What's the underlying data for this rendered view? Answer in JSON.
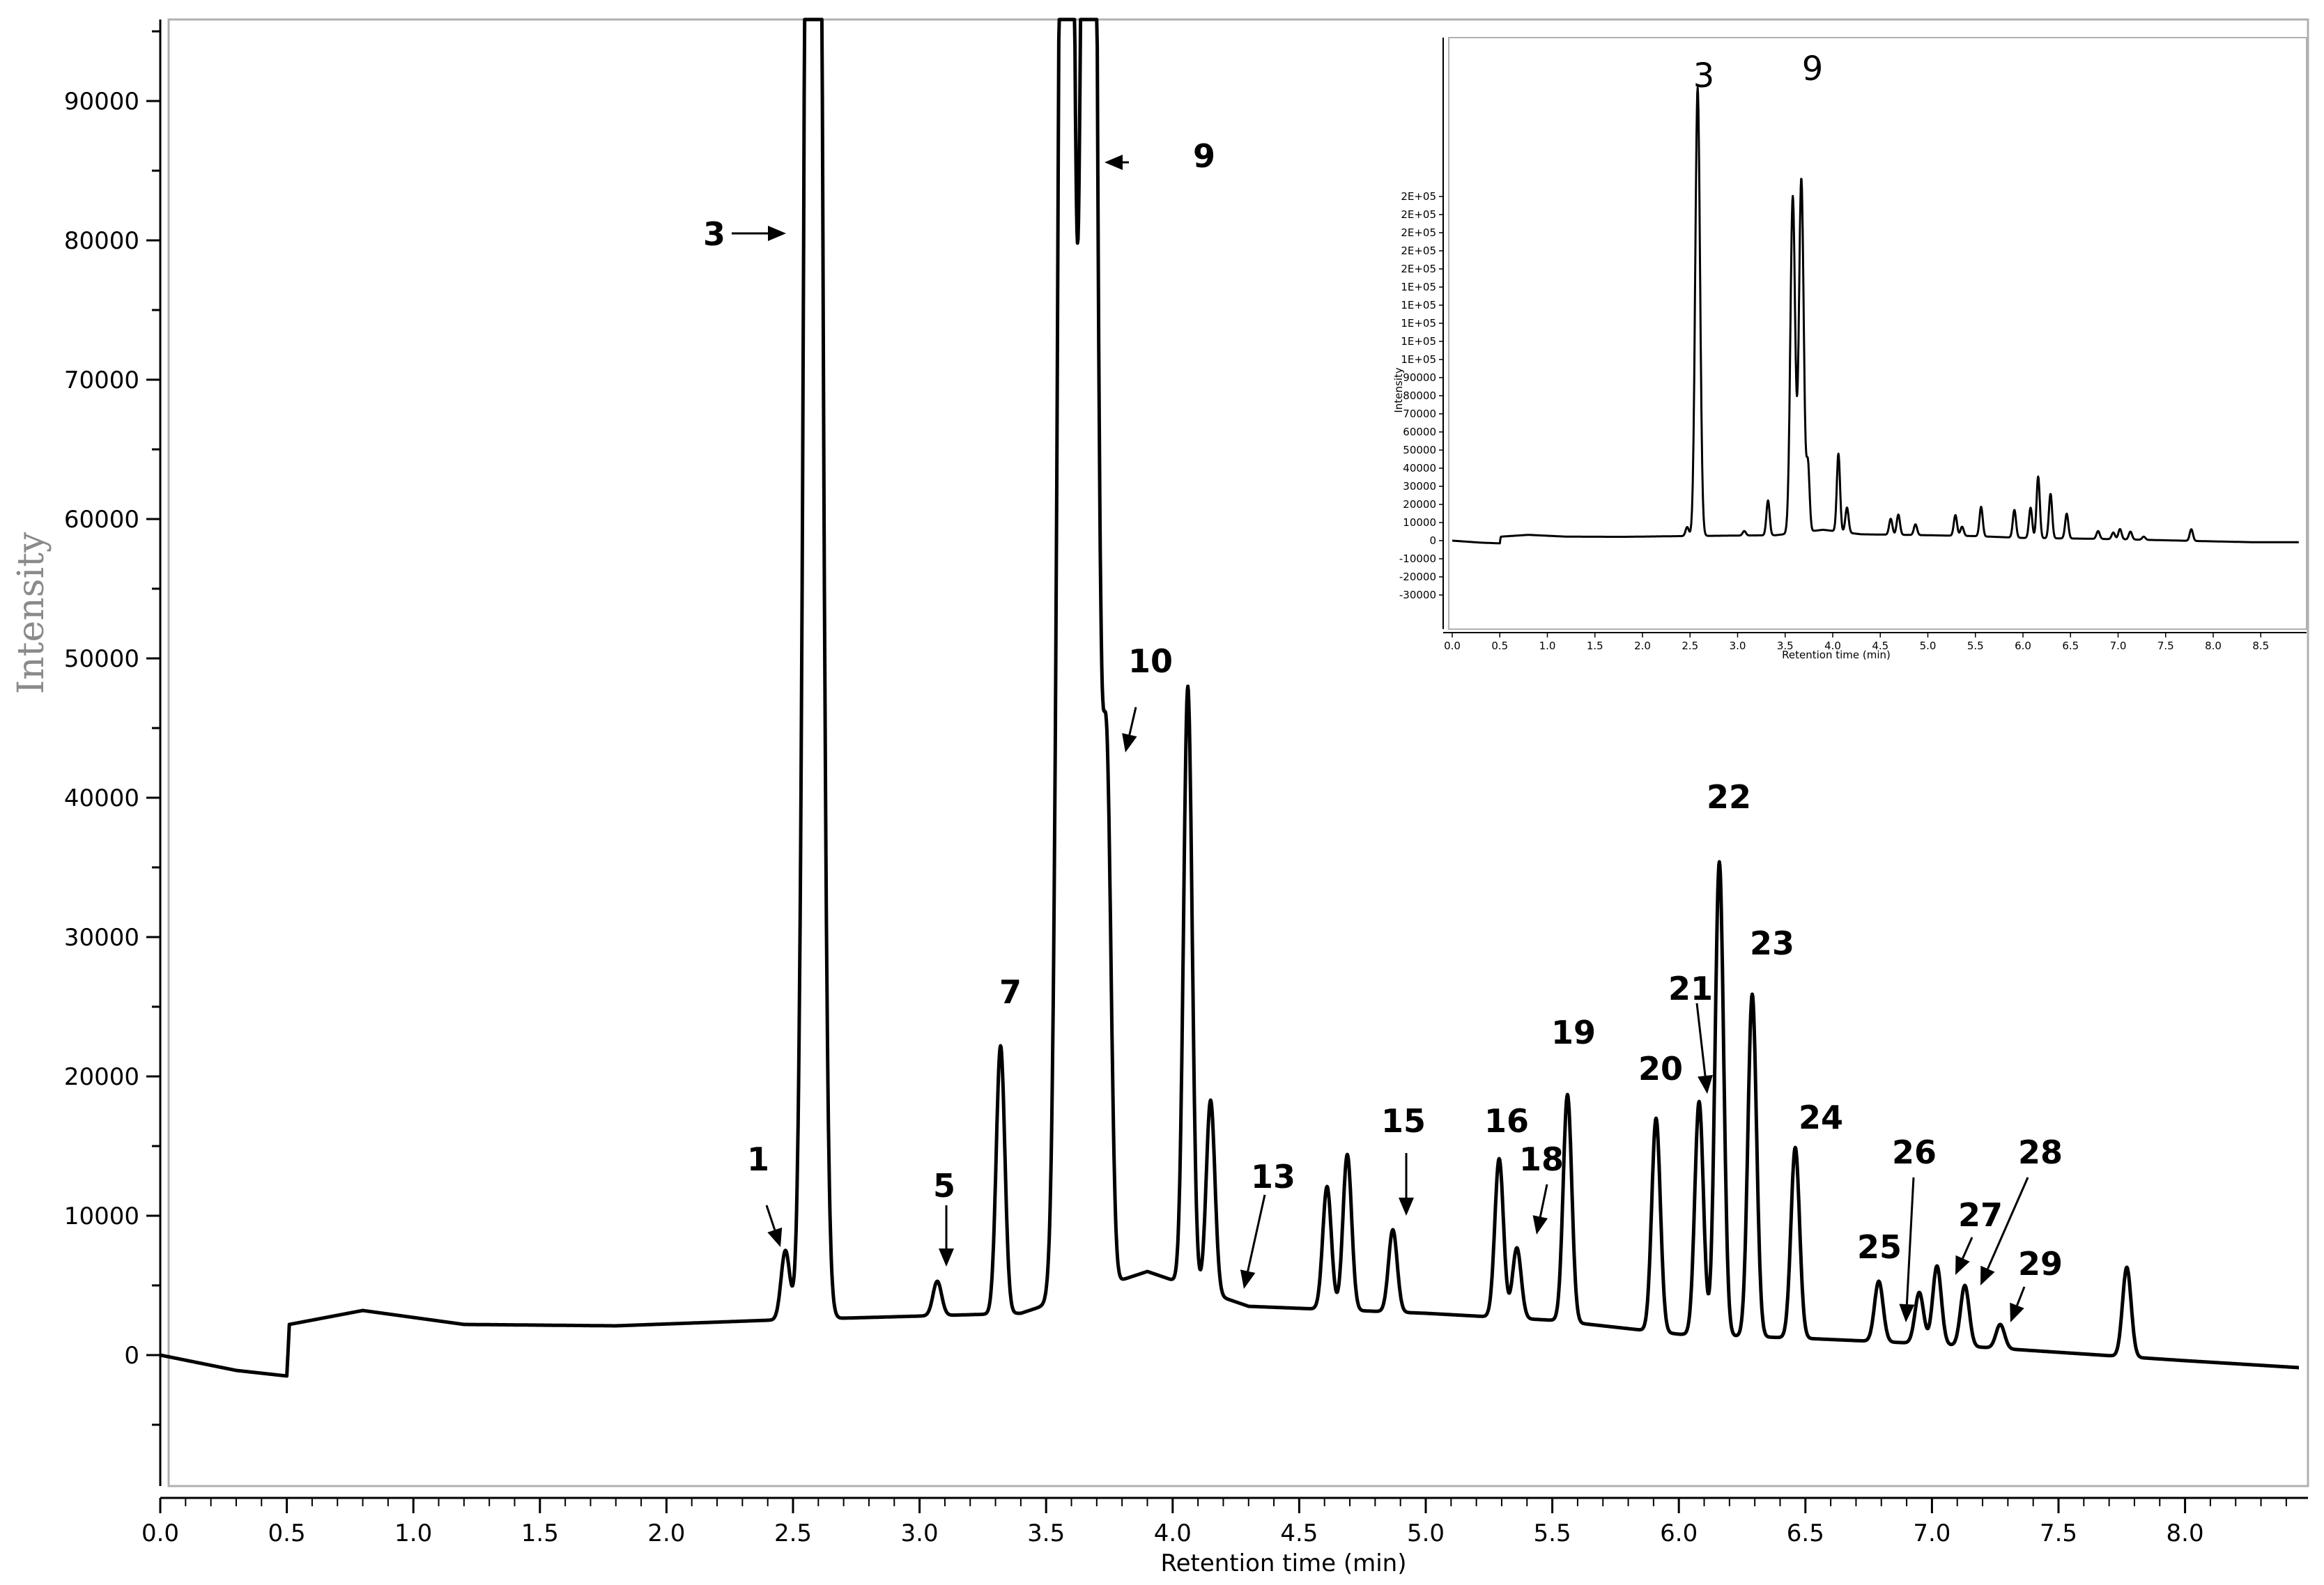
{
  "chart_data": {
    "type": "line",
    "xlabel": "Retention time (min)",
    "ylabel": "Intensity",
    "xlim": [
      0,
      8.45
    ],
    "ylim": [
      -10000,
      97000
    ],
    "x_ticks": [
      "0.0",
      "0.5",
      "1.0",
      "1.5",
      "2.0",
      "2.5",
      "3.0",
      "3.5",
      "4.0",
      "4.5",
      "5.0",
      "5.5",
      "6.0",
      "6.5",
      "7.0",
      "7.5",
      "8.0"
    ],
    "y_ticks": [
      "0",
      "10000",
      "20000",
      "30000",
      "40000",
      "50000",
      "60000",
      "70000",
      "80000",
      "90000"
    ],
    "grid": false,
    "baseline": [
      [
        0.0,
        0
      ],
      [
        0.3,
        -1100
      ],
      [
        0.5,
        -1500
      ],
      [
        0.51,
        2200
      ],
      [
        0.8,
        3200
      ],
      [
        1.2,
        2200
      ],
      [
        1.8,
        2100
      ],
      [
        2.4,
        2500
      ],
      [
        3.4,
        3000
      ],
      [
        3.9,
        6000
      ],
      [
        4.3,
        3500
      ],
      [
        5.0,
        3000
      ],
      [
        5.5,
        2500
      ],
      [
        6.0,
        1500
      ],
      [
        6.5,
        1200
      ],
      [
        7.0,
        800
      ],
      [
        7.5,
        200
      ],
      [
        8.0,
        -400
      ],
      [
        8.45,
        -900
      ]
    ],
    "peaks": [
      {
        "label": "1",
        "x": 2.47,
        "y": 7500
      },
      {
        "label": "3",
        "x": 2.58,
        "y": 250000
      },
      {
        "label": "5",
        "x": 3.07,
        "y": 5300
      },
      {
        "label": "7",
        "x": 3.32,
        "y": 22200
      },
      {
        "label": "",
        "x": 3.58,
        "y": 190000
      },
      {
        "label": "9",
        "x": 3.67,
        "y": 200000
      },
      {
        "label": "10",
        "x": 3.74,
        "y": 41000
      },
      {
        "label": "",
        "x": 4.06,
        "y": 48000
      },
      {
        "label": "",
        "x": 4.15,
        "y": 18300
      },
      {
        "label": "13",
        "x": 4.25,
        "y": 3800
      },
      {
        "label": "",
        "x": 4.61,
        "y": 12100
      },
      {
        "label": "",
        "x": 4.69,
        "y": 14400
      },
      {
        "label": "15",
        "x": 4.87,
        "y": 9000
      },
      {
        "label": "16",
        "x": 5.29,
        "y": 14100
      },
      {
        "label": "18",
        "x": 5.36,
        "y": 7700
      },
      {
        "label": "19",
        "x": 5.56,
        "y": 18700
      },
      {
        "label": "20",
        "x": 5.91,
        "y": 17000
      },
      {
        "label": "21",
        "x": 6.08,
        "y": 18200
      },
      {
        "label": "22",
        "x": 6.16,
        "y": 35400
      },
      {
        "label": "23",
        "x": 6.29,
        "y": 25900
      },
      {
        "label": "24",
        "x": 6.46,
        "y": 14900
      },
      {
        "label": "25",
        "x": 6.79,
        "y": 5300
      },
      {
        "label": "26",
        "x": 6.95,
        "y": 4500
      },
      {
        "label": "27",
        "x": 7.02,
        "y": 6400
      },
      {
        "label": "28",
        "x": 7.13,
        "y": 5000
      },
      {
        "label": "29",
        "x": 7.27,
        "y": 2200
      },
      {
        "label": "",
        "x": 7.77,
        "y": 6300
      }
    ],
    "annotations": [
      {
        "text": "1"
      },
      {
        "text": "3"
      },
      {
        "text": "5"
      },
      {
        "text": "7"
      },
      {
        "text": "9"
      },
      {
        "text": "10"
      },
      {
        "text": "13"
      },
      {
        "text": "15"
      },
      {
        "text": "16"
      },
      {
        "text": "18"
      },
      {
        "text": "19"
      },
      {
        "text": "20"
      },
      {
        "text": "21"
      },
      {
        "text": "22"
      },
      {
        "text": "23"
      },
      {
        "text": "24"
      },
      {
        "text": "25"
      },
      {
        "text": "26"
      },
      {
        "text": "27"
      },
      {
        "text": "28"
      },
      {
        "text": "29"
      }
    ],
    "inset": {
      "type": "line",
      "xlabel": "Retention time (min)",
      "ylabel": "Intensity",
      "xlim": [
        0,
        8.9
      ],
      "ylim": [
        -33000,
        255000
      ],
      "x_ticks": [
        "0.0",
        "0.5",
        "1.0",
        "1.5",
        "2.0",
        "2.5",
        "3.0",
        "3.5",
        "4.0",
        "4.5",
        "5.0",
        "5.5",
        "6.0",
        "6.5",
        "7.0",
        "7.5",
        "8.0",
        "8.5"
      ],
      "y_ticks": [
        "-30000",
        "-20000",
        "-10000",
        "0",
        "10000",
        "20000",
        "30000",
        "40000",
        "50000",
        "60000",
        "70000",
        "80000",
        "90000",
        "1E+05",
        "1E+05",
        "1E+05",
        "1E+05",
        "1E+05",
        "2E+05",
        "2E+05",
        "2E+05",
        "2E+05",
        "2E+05"
      ],
      "annotations": [
        {
          "text": "3"
        },
        {
          "text": "9"
        }
      ]
    }
  }
}
